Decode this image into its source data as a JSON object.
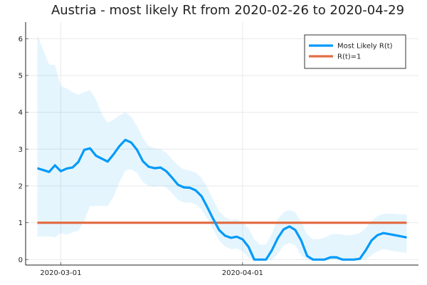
{
  "chart_data": {
    "type": "line",
    "title": "Austria - most likely Rt from 2020-02-26 to 2020-04-29",
    "xlabel": "",
    "ylabel": "",
    "x_start": "2020-02-26",
    "x_end": "2020-04-29",
    "xlim": [
      "2020-02-24",
      "2020-05-01"
    ],
    "ylim": [
      -0.15,
      6.45
    ],
    "x_ticks": [
      {
        "date": "2020-03-01",
        "label": "2020-03-01"
      },
      {
        "date": "2020-04-01",
        "label": "2020-04-01"
      }
    ],
    "y_ticks": [
      {
        "value": 0,
        "label": "0"
      },
      {
        "value": 1,
        "label": "1"
      },
      {
        "value": 2,
        "label": "2"
      },
      {
        "value": 3,
        "label": "3"
      },
      {
        "value": 4,
        "label": "4"
      },
      {
        "value": 5,
        "label": "5"
      },
      {
        "value": 6,
        "label": "6"
      }
    ],
    "grid": true,
    "legend_position": "top-right",
    "series": [
      {
        "name": "Most Likely R(t)",
        "color": "#009AF9",
        "x": [
          "2020-02-26",
          "2020-02-27",
          "2020-02-28",
          "2020-02-29",
          "2020-03-01",
          "2020-03-02",
          "2020-03-03",
          "2020-03-04",
          "2020-03-05",
          "2020-03-06",
          "2020-03-07",
          "2020-03-08",
          "2020-03-09",
          "2020-03-10",
          "2020-03-11",
          "2020-03-12",
          "2020-03-13",
          "2020-03-14",
          "2020-03-15",
          "2020-03-16",
          "2020-03-17",
          "2020-03-18",
          "2020-03-19",
          "2020-03-20",
          "2020-03-21",
          "2020-03-22",
          "2020-03-23",
          "2020-03-24",
          "2020-03-25",
          "2020-03-26",
          "2020-03-27",
          "2020-03-28",
          "2020-03-29",
          "2020-03-30",
          "2020-03-31",
          "2020-04-01",
          "2020-04-02",
          "2020-04-03",
          "2020-04-04",
          "2020-04-05",
          "2020-04-06",
          "2020-04-07",
          "2020-04-08",
          "2020-04-09",
          "2020-04-10",
          "2020-04-11",
          "2020-04-12",
          "2020-04-13",
          "2020-04-14",
          "2020-04-15",
          "2020-04-16",
          "2020-04-17",
          "2020-04-18",
          "2020-04-19",
          "2020-04-20",
          "2020-04-21",
          "2020-04-22",
          "2020-04-23",
          "2020-04-24",
          "2020-04-25",
          "2020-04-26",
          "2020-04-27",
          "2020-04-28",
          "2020-04-29"
        ],
        "values": [
          2.48,
          2.43,
          2.38,
          2.56,
          2.4,
          2.47,
          2.5,
          2.65,
          2.98,
          3.02,
          2.82,
          2.74,
          2.66,
          2.86,
          3.08,
          3.25,
          3.18,
          2.98,
          2.67,
          2.52,
          2.48,
          2.5,
          2.4,
          2.22,
          2.03,
          1.96,
          1.95,
          1.88,
          1.72,
          1.42,
          1.1,
          0.8,
          0.65,
          0.59,
          0.62,
          0.55,
          0.35,
          0.0,
          0.0,
          0.0,
          0.25,
          0.58,
          0.82,
          0.9,
          0.8,
          0.52,
          0.1,
          0.0,
          0.0,
          0.0,
          0.06,
          0.06,
          0.0,
          0.0,
          0.0,
          0.02,
          0.25,
          0.52,
          0.66,
          0.72,
          0.69,
          0.66,
          0.63,
          0.6
        ]
      },
      {
        "name": "R(t)=1",
        "color": "#E26F46",
        "x": [
          "2020-02-26",
          "2020-04-29"
        ],
        "values": [
          1,
          1
        ]
      }
    ],
    "band": {
      "color": "#009AF9",
      "opacity": 0.1,
      "x": [
        "2020-02-26",
        "2020-02-27",
        "2020-02-28",
        "2020-02-29",
        "2020-03-01",
        "2020-03-02",
        "2020-03-03",
        "2020-03-04",
        "2020-03-05",
        "2020-03-06",
        "2020-03-07",
        "2020-03-08",
        "2020-03-09",
        "2020-03-10",
        "2020-03-11",
        "2020-03-12",
        "2020-03-13",
        "2020-03-14",
        "2020-03-15",
        "2020-03-16",
        "2020-03-17",
        "2020-03-18",
        "2020-03-19",
        "2020-03-20",
        "2020-03-21",
        "2020-03-22",
        "2020-03-23",
        "2020-03-24",
        "2020-03-25",
        "2020-03-26",
        "2020-03-27",
        "2020-03-28",
        "2020-03-29",
        "2020-03-30",
        "2020-03-31",
        "2020-04-01",
        "2020-04-02",
        "2020-04-03",
        "2020-04-04",
        "2020-04-05",
        "2020-04-06",
        "2020-04-07",
        "2020-04-08",
        "2020-04-09",
        "2020-04-10",
        "2020-04-11",
        "2020-04-12",
        "2020-04-13",
        "2020-04-14",
        "2020-04-15",
        "2020-04-16",
        "2020-04-17",
        "2020-04-18",
        "2020-04-19",
        "2020-04-20",
        "2020-04-21",
        "2020-04-22",
        "2020-04-23",
        "2020-04-24",
        "2020-04-25",
        "2020-04-26",
        "2020-04-27",
        "2020-04-28",
        "2020-04-29"
      ],
      "upper": [
        6.1,
        5.7,
        5.3,
        5.28,
        4.72,
        4.65,
        4.55,
        4.48,
        4.55,
        4.6,
        4.35,
        3.95,
        3.72,
        3.8,
        3.92,
        4.0,
        3.88,
        3.62,
        3.3,
        3.08,
        3.02,
        3.0,
        2.9,
        2.72,
        2.56,
        2.45,
        2.42,
        2.36,
        2.22,
        1.95,
        1.62,
        1.32,
        1.15,
        1.08,
        1.1,
        1.02,
        0.85,
        0.55,
        0.4,
        0.42,
        0.7,
        1.1,
        1.28,
        1.35,
        1.28,
        1.02,
        0.68,
        0.55,
        0.55,
        0.6,
        0.68,
        0.7,
        0.68,
        0.66,
        0.68,
        0.72,
        0.85,
        1.05,
        1.18,
        1.24,
        1.25,
        1.24,
        1.23,
        1.22
      ],
      "lower": [
        0.62,
        0.62,
        0.63,
        0.6,
        0.72,
        0.67,
        0.74,
        0.78,
        1.05,
        1.45,
        1.45,
        1.46,
        1.45,
        1.7,
        2.1,
        2.42,
        2.45,
        2.35,
        2.1,
        2.0,
        1.98,
        2.0,
        1.95,
        1.8,
        1.62,
        1.55,
        1.55,
        1.5,
        1.36,
        1.1,
        0.82,
        0.52,
        0.36,
        0.28,
        0.3,
        0.22,
        0.05,
        0.0,
        0.0,
        0.0,
        0.0,
        0.15,
        0.38,
        0.45,
        0.38,
        0.12,
        0.0,
        0.0,
        0.0,
        0.0,
        0.0,
        0.0,
        0.0,
        0.0,
        0.0,
        0.0,
        0.0,
        0.12,
        0.22,
        0.28,
        0.25,
        0.22,
        0.2,
        0.18
      ]
    }
  }
}
